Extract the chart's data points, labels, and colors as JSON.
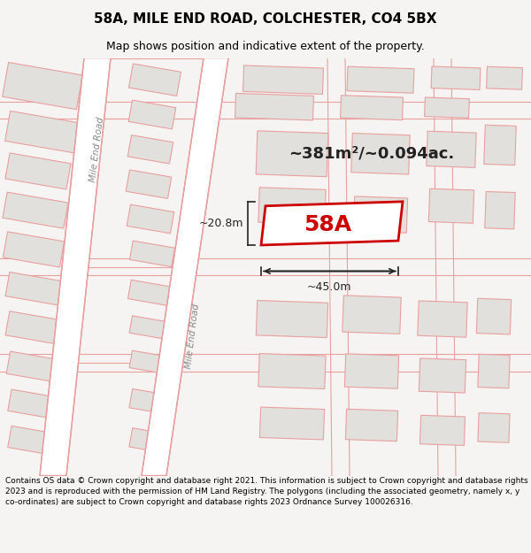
{
  "title": "58A, MILE END ROAD, COLCHESTER, CO4 5BX",
  "subtitle": "Map shows position and indicative extent of the property.",
  "area_text": "~381m²/~0.094ac.",
  "label_58A": "58A",
  "dim_width": "~45.0m",
  "dim_height": "~20.8m",
  "footer": "Contains OS data © Crown copyright and database right 2021. This information is subject to Crown copyright and database rights 2023 and is reproduced with the permission of HM Land Registry. The polygons (including the associated geometry, namely x, y co-ordinates) are subject to Crown copyright and database rights 2023 Ordnance Survey 100026316.",
  "bg_color": "#f5f4f2",
  "map_bg": "#f8f7f5",
  "building_fill": "#e2e0dc",
  "highlight_fill": "#ffffff",
  "highlight_stroke": "#cc0000",
  "road_line_color": "#e8a0a0",
  "road_label_color": "#888888",
  "title_color": "#000000",
  "footer_color": "#000000",
  "road_fill": "#ffffff"
}
